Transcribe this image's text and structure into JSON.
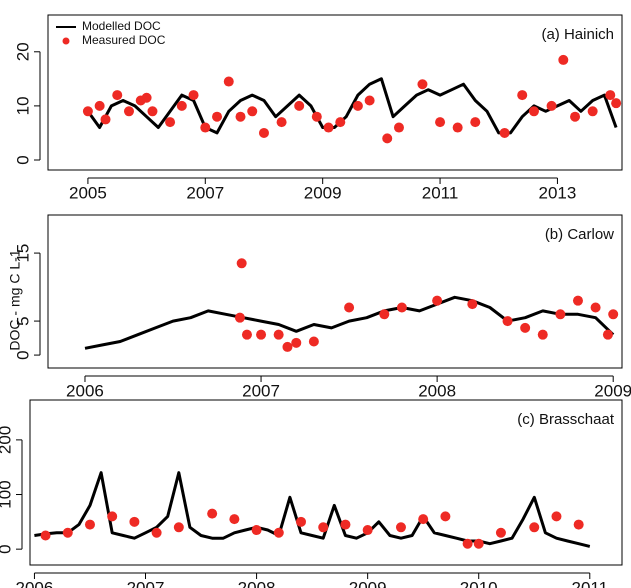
{
  "chart_data": [
    {
      "type": "line",
      "annotation": "(a)  Hainich",
      "legend": "upper left",
      "xlim": [
        2004.32,
        2014.1
      ],
      "xticks": [
        2005,
        2007,
        2009,
        2011,
        2013
      ],
      "ylim": [
        -1.85,
        26.8
      ],
      "yticks": [
        0,
        10,
        20
      ],
      "series": [
        {
          "name": "Modelled DOC",
          "style": "line",
          "color": "#000000",
          "x": [
            2005.0,
            2005.2,
            2005.4,
            2005.6,
            2005.8,
            2006.0,
            2006.2,
            2006.4,
            2006.6,
            2006.8,
            2007.0,
            2007.2,
            2007.4,
            2007.6,
            2007.8,
            2008.0,
            2008.2,
            2008.4,
            2008.6,
            2008.8,
            2009.0,
            2009.2,
            2009.4,
            2009.6,
            2009.8,
            2010.0,
            2010.2,
            2010.4,
            2010.6,
            2010.8,
            2011.0,
            2011.2,
            2011.4,
            2011.6,
            2011.8,
            2012.0,
            2012.2,
            2012.4,
            2012.6,
            2012.8,
            2013.0,
            2013.2,
            2013.4,
            2013.6,
            2013.8,
            2014.0
          ],
          "values": [
            9,
            6,
            10,
            11,
            10,
            8,
            6,
            9,
            12,
            11,
            6,
            5,
            9,
            11,
            12,
            11,
            8,
            10,
            12,
            10,
            6,
            6,
            8,
            12,
            14,
            15,
            8,
            10,
            12,
            13,
            12,
            13,
            14,
            11,
            9,
            5,
            5,
            8,
            10,
            9,
            10,
            11,
            9,
            11,
            12,
            6
          ]
        },
        {
          "name": "Measured DOC",
          "style": "points",
          "color": "#ee2a24",
          "x": [
            2005.0,
            2005.2,
            2005.3,
            2005.5,
            2005.7,
            2005.9,
            2006.0,
            2006.1,
            2006.4,
            2006.6,
            2006.8,
            2007.0,
            2007.2,
            2007.4,
            2007.6,
            2007.8,
            2008.0,
            2008.3,
            2008.6,
            2008.9,
            2009.1,
            2009.3,
            2009.6,
            2009.8,
            2010.1,
            2010.3,
            2010.7,
            2011.0,
            2011.3,
            2011.6,
            2012.1,
            2012.4,
            2012.6,
            2012.9,
            2013.1,
            2013.3,
            2013.6,
            2013.9,
            2014.0
          ],
          "values": [
            9,
            10,
            7.5,
            12,
            9,
            11,
            11.5,
            9,
            7,
            10,
            12,
            6,
            8,
            14.5,
            8,
            9,
            5,
            7,
            10,
            8,
            6,
            7,
            10,
            11,
            4,
            6,
            14,
            7,
            6,
            7,
            5,
            12,
            9,
            10,
            18.5,
            8,
            9,
            12,
            10.5
          ]
        }
      ]
    },
    {
      "type": "line",
      "annotation": "(b)  Carlow",
      "ylabel": "DOC - mg C L-1",
      "xlim": [
        2005.79,
        2009.05
      ],
      "xticks": [
        2006,
        2007,
        2008,
        2009
      ],
      "ylim": [
        -1.9,
        20.6
      ],
      "yticks": [
        0,
        5,
        15
      ],
      "series": [
        {
          "style": "line",
          "color": "#000000",
          "x": [
            2006.0,
            2006.1,
            2006.2,
            2006.3,
            2006.4,
            2006.5,
            2006.6,
            2006.7,
            2006.8,
            2006.9,
            2007.0,
            2007.1,
            2007.2,
            2007.3,
            2007.4,
            2007.5,
            2007.6,
            2007.7,
            2007.8,
            2007.9,
            2008.0,
            2008.1,
            2008.2,
            2008.3,
            2008.4,
            2008.5,
            2008.6,
            2008.7,
            2008.8,
            2008.9,
            2009.0
          ],
          "values": [
            1,
            1.5,
            2,
            3,
            4,
            5,
            5.5,
            6.5,
            6,
            5.5,
            5,
            4.5,
            3.5,
            4.5,
            4,
            5,
            5.5,
            6.5,
            7,
            6.5,
            7.5,
            8.5,
            8,
            7,
            5,
            5.5,
            6.5,
            6,
            6,
            5.5,
            3
          ]
        },
        {
          "style": "points",
          "color": "#ee2a24",
          "x": [
            2006.88,
            2006.92,
            2006.89,
            2007.0,
            2007.1,
            2007.15,
            2007.2,
            2007.3,
            2007.5,
            2007.7,
            2007.8,
            2008.0,
            2008.2,
            2008.4,
            2008.5,
            2008.6,
            2008.7,
            2008.8,
            2008.9,
            2008.97,
            2009.0
          ],
          "values": [
            5.5,
            3,
            13.5,
            3,
            3,
            1.2,
            1.8,
            2,
            7,
            6,
            7,
            8,
            7.5,
            5,
            4,
            3,
            6,
            8,
            7,
            3,
            6
          ]
        }
      ]
    },
    {
      "type": "line",
      "annotation": "(c)  Brasschaat",
      "xlim": [
        2005.96,
        2011.29
      ],
      "xticks": [
        2006,
        2007,
        2008,
        2009,
        2010,
        2011
      ],
      "ylim": [
        -29,
        273
      ],
      "yticks": [
        0,
        100,
        200
      ],
      "series": [
        {
          "style": "line",
          "color": "#000000",
          "x": [
            2006.0,
            2006.1,
            2006.2,
            2006.3,
            2006.4,
            2006.5,
            2006.6,
            2006.7,
            2006.8,
            2006.9,
            2007.0,
            2007.1,
            2007.2,
            2007.3,
            2007.4,
            2007.5,
            2007.6,
            2007.7,
            2007.8,
            2007.9,
            2008.0,
            2008.1,
            2008.2,
            2008.3,
            2008.4,
            2008.5,
            2008.6,
            2008.7,
            2008.8,
            2008.9,
            2009.0,
            2009.1,
            2009.2,
            2009.3,
            2009.4,
            2009.5,
            2009.6,
            2009.7,
            2009.8,
            2009.9,
            2010.0,
            2010.1,
            2010.2,
            2010.3,
            2010.4,
            2010.5,
            2010.6,
            2010.7,
            2010.8,
            2010.9,
            2011.0
          ],
          "values": [
            25,
            28,
            30,
            30,
            45,
            80,
            140,
            30,
            25,
            20,
            30,
            40,
            60,
            140,
            40,
            25,
            20,
            20,
            30,
            35,
            40,
            35,
            25,
            95,
            30,
            25,
            20,
            80,
            25,
            20,
            30,
            50,
            25,
            20,
            25,
            60,
            30,
            25,
            20,
            15,
            15,
            10,
            15,
            20,
            55,
            95,
            30,
            20,
            15,
            10,
            5
          ]
        },
        {
          "style": "points",
          "color": "#ee2a24",
          "x": [
            2006.1,
            2006.3,
            2006.5,
            2006.7,
            2006.9,
            2007.1,
            2007.3,
            2007.6,
            2007.8,
            2008.0,
            2008.2,
            2008.4,
            2008.6,
            2008.8,
            2009.0,
            2009.3,
            2009.5,
            2009.7,
            2009.9,
            2010.0,
            2010.2,
            2010.5,
            2010.7,
            2010.9
          ],
          "values": [
            25,
            30,
            45,
            60,
            50,
            30,
            40,
            65,
            55,
            35,
            30,
            50,
            40,
            45,
            35,
            40,
            55,
            60,
            10,
            10,
            30,
            40,
            60,
            45
          ]
        }
      ]
    }
  ]
}
